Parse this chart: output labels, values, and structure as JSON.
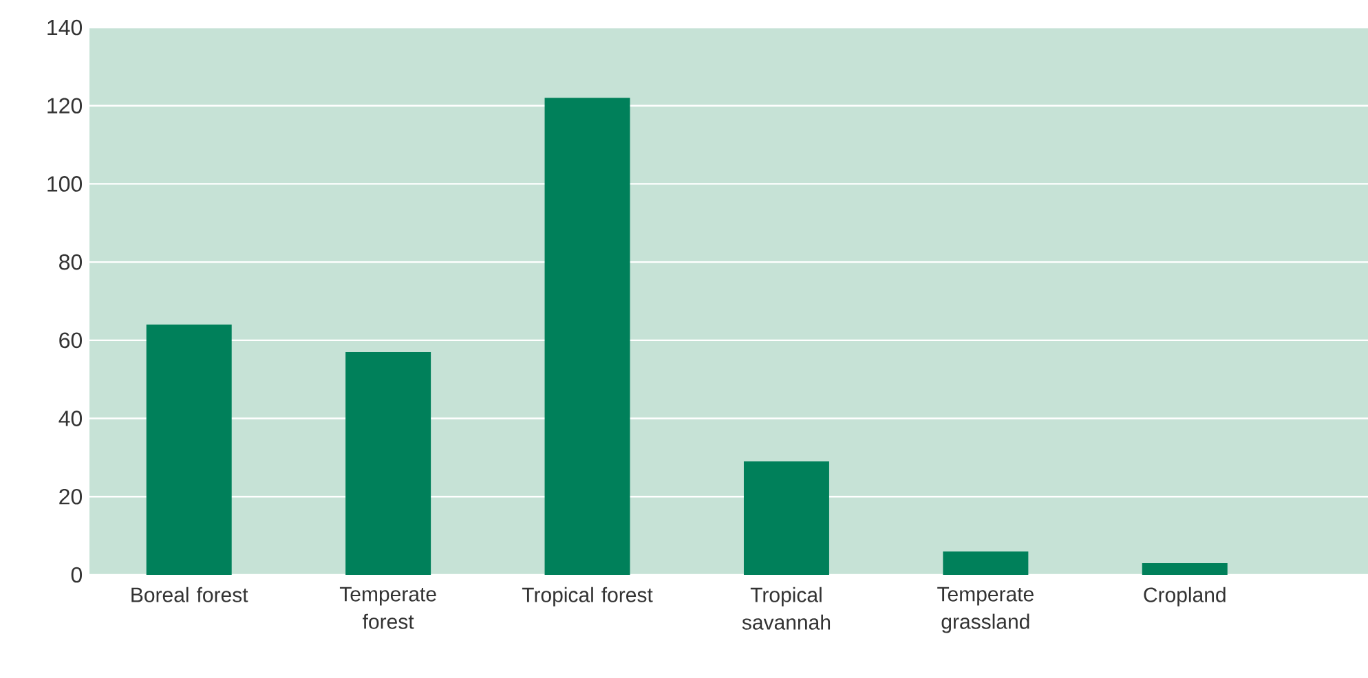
{
  "chart_data": {
    "type": "bar",
    "categories": [
      "Boreal forest",
      "Temperate forest",
      "Tropical forest",
      "Tropical savannah",
      "Temperate grassland",
      "Cropland"
    ],
    "values": [
      64,
      57,
      122,
      29,
      6,
      3
    ],
    "color": "#00805a",
    "ylim": [
      0,
      140
    ],
    "yticks": [
      0,
      20,
      40,
      60,
      80,
      100,
      120,
      140
    ],
    "grid": "y"
  }
}
